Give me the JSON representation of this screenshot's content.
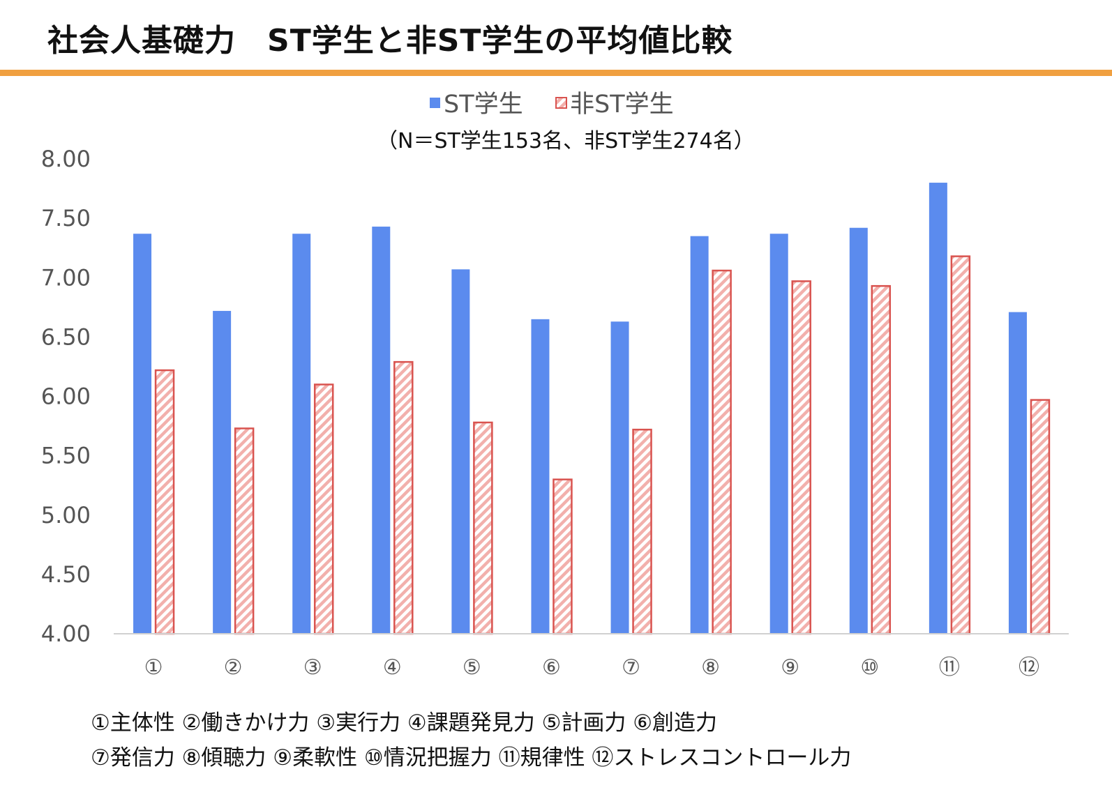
{
  "title": "社会人基礎力　ST学生と非ST学生の平均値比較",
  "accent_color": "#F0A040",
  "chart_data": {
    "type": "bar",
    "note": "（N＝ST学生153名、非ST学生274名）",
    "categories": [
      "①",
      "②",
      "③",
      "④",
      "⑤",
      "⑥",
      "⑦",
      "⑧",
      "⑨",
      "⑩",
      "⑪",
      "⑫"
    ],
    "series": [
      {
        "name": "ST学生",
        "color": "#5B8BEE",
        "pattern": "solid",
        "values": [
          7.37,
          6.72,
          7.37,
          7.43,
          7.07,
          6.65,
          6.63,
          7.35,
          7.37,
          7.42,
          7.8,
          6.71
        ]
      },
      {
        "name": "非ST学生",
        "color": "#D9534F",
        "pattern": "hatched",
        "values": [
          6.22,
          5.73,
          6.1,
          6.29,
          5.78,
          5.3,
          5.72,
          7.06,
          6.97,
          6.93,
          7.18,
          5.97
        ]
      }
    ],
    "yticks": [
      "4.00",
      "4.50",
      "5.00",
      "5.50",
      "6.00",
      "6.50",
      "7.00",
      "7.50",
      "8.00"
    ],
    "ylim": [
      4,
      8
    ],
    "legend_position": "top",
    "grid": false
  },
  "footer": {
    "line1": "①主体性 ②働きかけ力 ③実行力 ④課題発見力 ⑤計画力 ⑥創造力",
    "line2": "⑦発信力 ⑧傾聴力 ⑨柔軟性 ⑩情況把握力 ⑪規律性 ⑫ストレスコントロール力"
  }
}
